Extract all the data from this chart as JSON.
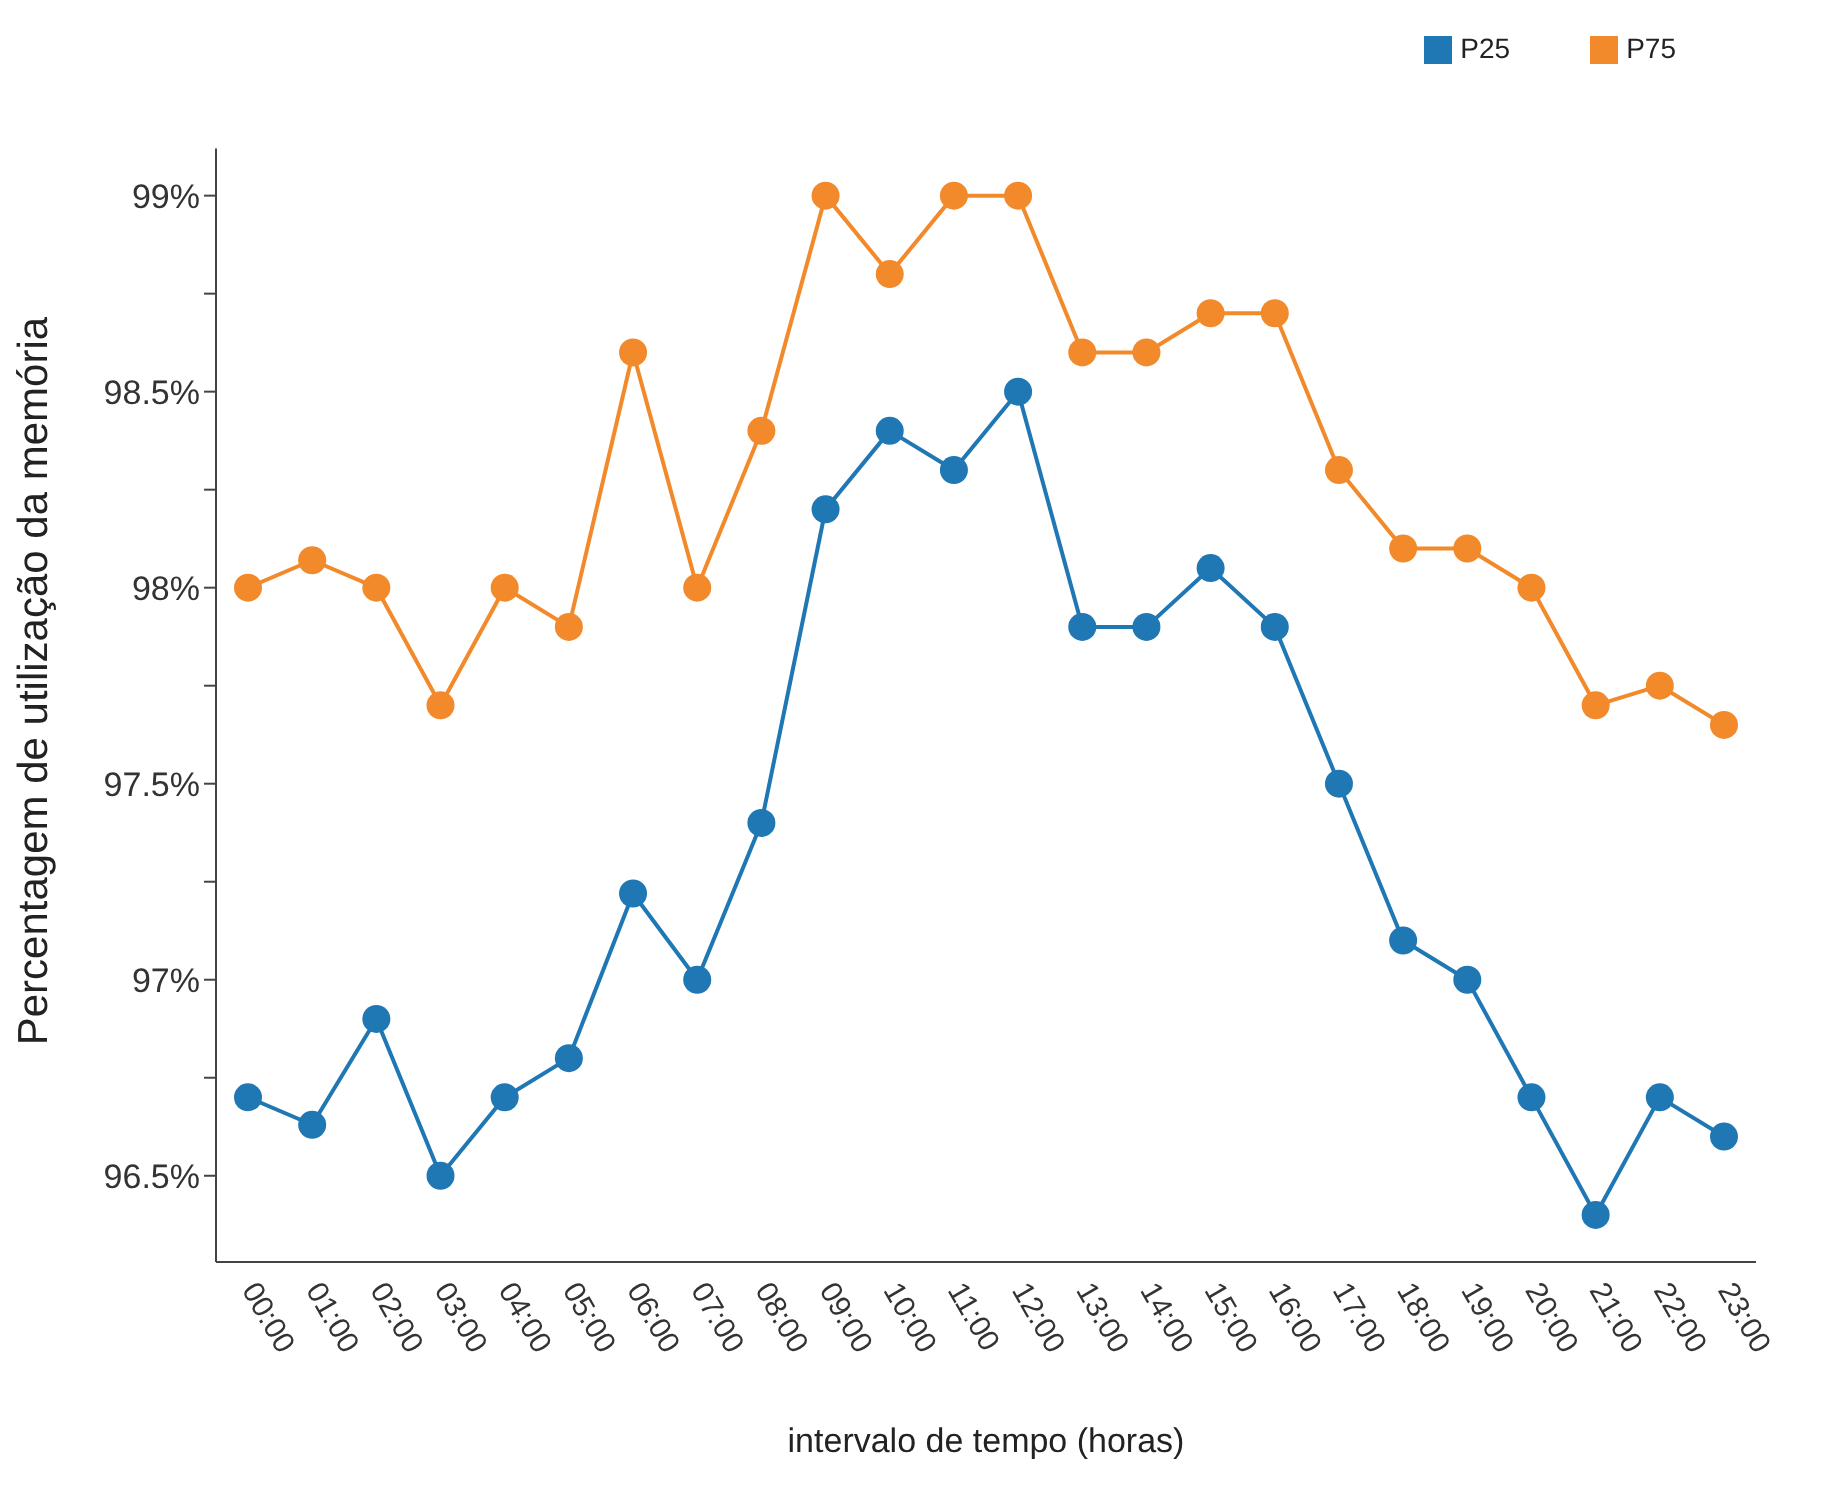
{
  "chart_data": {
    "type": "line",
    "xlabel": "intervalo de tempo (horas)",
    "ylabel": "Percentagem de utilização da memória",
    "categories": [
      "00:00",
      "01:00",
      "02:00",
      "03:00",
      "04:00",
      "05:00",
      "06:00",
      "07:00",
      "08:00",
      "09:00",
      "10:00",
      "11:00",
      "12:00",
      "13:00",
      "14:00",
      "15:00",
      "16:00",
      "17:00",
      "18:00",
      "19:00",
      "20:00",
      "21:00",
      "22:00",
      "23:00"
    ],
    "series": [
      {
        "name": "P25",
        "color": "#1f77b4",
        "values": [
          96.7,
          96.63,
          96.9,
          96.5,
          96.7,
          96.8,
          97.22,
          97.0,
          97.4,
          98.2,
          98.4,
          98.3,
          98.5,
          97.9,
          97.9,
          98.05,
          97.9,
          97.5,
          97.1,
          97.0,
          96.7,
          96.4,
          96.7,
          96.6
        ]
      },
      {
        "name": "P75",
        "color": "#f28a2b",
        "values": [
          98.0,
          98.07,
          98.0,
          97.7,
          98.0,
          97.9,
          98.6,
          98.0,
          98.4,
          99.0,
          98.8,
          99.0,
          99.0,
          98.6,
          98.6,
          98.7,
          98.7,
          98.3,
          98.1,
          98.1,
          98.0,
          97.7,
          97.75,
          97.65
        ]
      }
    ],
    "ylim": [
      96.28,
      99.12
    ],
    "yticks": [
      {
        "value": 96.5,
        "label": "96.5%"
      },
      {
        "value": 96.75,
        "label": null
      },
      {
        "value": 97,
        "label": "97%"
      },
      {
        "value": 97.25,
        "label": null
      },
      {
        "value": 97.5,
        "label": "97.5%"
      },
      {
        "value": 97.75,
        "label": null
      },
      {
        "value": 98,
        "label": "98%"
      },
      {
        "value": 98.25,
        "label": null
      },
      {
        "value": 98.5,
        "label": "98.5%"
      },
      {
        "value": 98.75,
        "label": null
      },
      {
        "value": 99,
        "label": "99%"
      }
    ],
    "grid": false,
    "legend": "top right",
    "marker": "circle",
    "line_style": "solid"
  }
}
